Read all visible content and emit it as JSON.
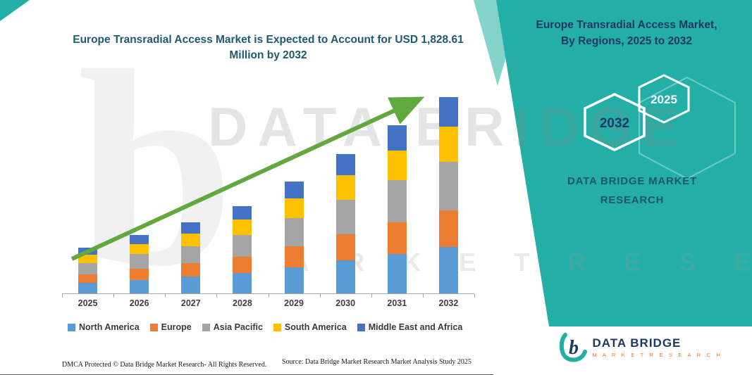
{
  "header": {
    "chart_title": "Europe Transradial Access Market is Expected to Account for USD 1,828.61 Million by 2032"
  },
  "chart_data": {
    "type": "bar",
    "stacked": true,
    "values_estimated": true,
    "title": "Europe Transradial Access Market is Expected to Account for USD 1,828.61 Million by 2032",
    "unit": "USD Million",
    "categories": [
      "2025",
      "2026",
      "2027",
      "2028",
      "2029",
      "2030",
      "2031",
      "2032"
    ],
    "series": [
      {
        "name": "North America",
        "color": "#5B9BD5",
        "values": [
          100,
          128,
          155,
          190,
          245,
          305,
          370,
          430
        ]
      },
      {
        "name": "Europe",
        "color": "#ED7D31",
        "values": [
          80,
          102,
          124,
          153,
          197,
          245,
          295,
          345
        ]
      },
      {
        "name": "Asia Pacific",
        "color": "#A5A5A5",
        "values": [
          105,
          134,
          163,
          200,
          258,
          321,
          387,
          452
        ]
      },
      {
        "name": "South America",
        "color": "#FFC000",
        "values": [
          75,
          96,
          117,
          143,
          185,
          230,
          277,
          323
        ]
      },
      {
        "name": "Middle East and Africa",
        "color": "#4472C4",
        "values": [
          65,
          82,
          101,
          124,
          160,
          199,
          238,
          278.61
        ]
      }
    ],
    "totals": [
      425,
      542,
      660,
      810,
      1045,
      1300,
      1567,
      1828.61
    ],
    "ylim": [
      0,
      1900
    ],
    "grid": false,
    "y_axis_labels_visible": false,
    "legend_position": "bottom",
    "trend_arrow": {
      "present": true,
      "color": "#61A83E",
      "direction": "up-right"
    }
  },
  "right_panel": {
    "title_line1": "Europe Transradial Access Market,",
    "title_line2": "By Regions, 2025 to 2032",
    "hexagons": [
      {
        "label": "2032"
      },
      {
        "label": "2025"
      }
    ],
    "brand_line1": "DATA BRIDGE MARKET",
    "brand_line2": "RESEARCH",
    "teal": "#23AFA6",
    "navy": "#1F3864"
  },
  "watermark": {
    "monogram": "b",
    "line1": "DATA BRIDGE",
    "line2": "M A R K E T    R E S E A R C H"
  },
  "footer": {
    "dmca": "DMCA Protected © Data Bridge Market Research-  All Rights Reserved.",
    "source": "Source: Data Bridge Market Research  Market Analysis Study 2025"
  },
  "logo": {
    "monogram": "b",
    "name": "DATA BRIDGE",
    "sub": "M A R K E T   R E S E A R C H"
  }
}
